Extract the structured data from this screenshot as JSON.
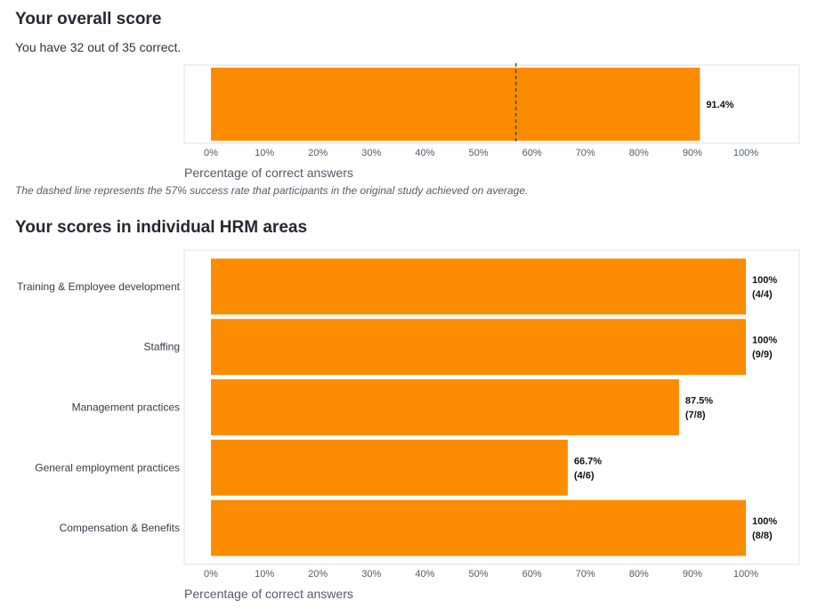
{
  "overall": {
    "heading": "Your overall score",
    "summary": "You have 32 out of 35 correct.",
    "note": "The dashed line represents the 57% success rate that participants in the original study achieved on average.",
    "xlabel": "Percentage of correct answers"
  },
  "areas": {
    "heading": "Your scores in individual HRM areas",
    "xlabel": "Percentage of correct answers"
  },
  "colors": {
    "bar": "#fb8c00",
    "reference": "#4a4a4a",
    "frame": "#e2e2e6"
  },
  "chart_data": [
    {
      "type": "bar",
      "orientation": "horizontal",
      "categories": [
        ""
      ],
      "values": [
        91.4
      ],
      "value_labels": [
        "91.4%"
      ],
      "reference_line": 57,
      "xlim": [
        0,
        100
      ],
      "xticks": [
        "0%",
        "10%",
        "20%",
        "30%",
        "40%",
        "50%",
        "60%",
        "70%",
        "80%",
        "90%",
        "100%"
      ],
      "xlabel": "Percentage of correct answers"
    },
    {
      "type": "bar",
      "orientation": "horizontal",
      "categories": [
        "Training & Employee development",
        "Staffing",
        "Management practices",
        "General employment practices",
        "Compensation & Benefits"
      ],
      "values": [
        100,
        100,
        87.5,
        66.7,
        100
      ],
      "value_labels": [
        [
          "100%",
          "(4/4)"
        ],
        [
          "100%",
          "(9/9)"
        ],
        [
          "87.5%",
          "(7/8)"
        ],
        [
          "66.7%",
          "(4/6)"
        ],
        [
          "100%",
          "(8/8)"
        ]
      ],
      "xlim": [
        0,
        100
      ],
      "xticks": [
        "0%",
        "10%",
        "20%",
        "30%",
        "40%",
        "50%",
        "60%",
        "70%",
        "80%",
        "90%",
        "100%"
      ],
      "xlabel": "Percentage of correct answers"
    }
  ]
}
